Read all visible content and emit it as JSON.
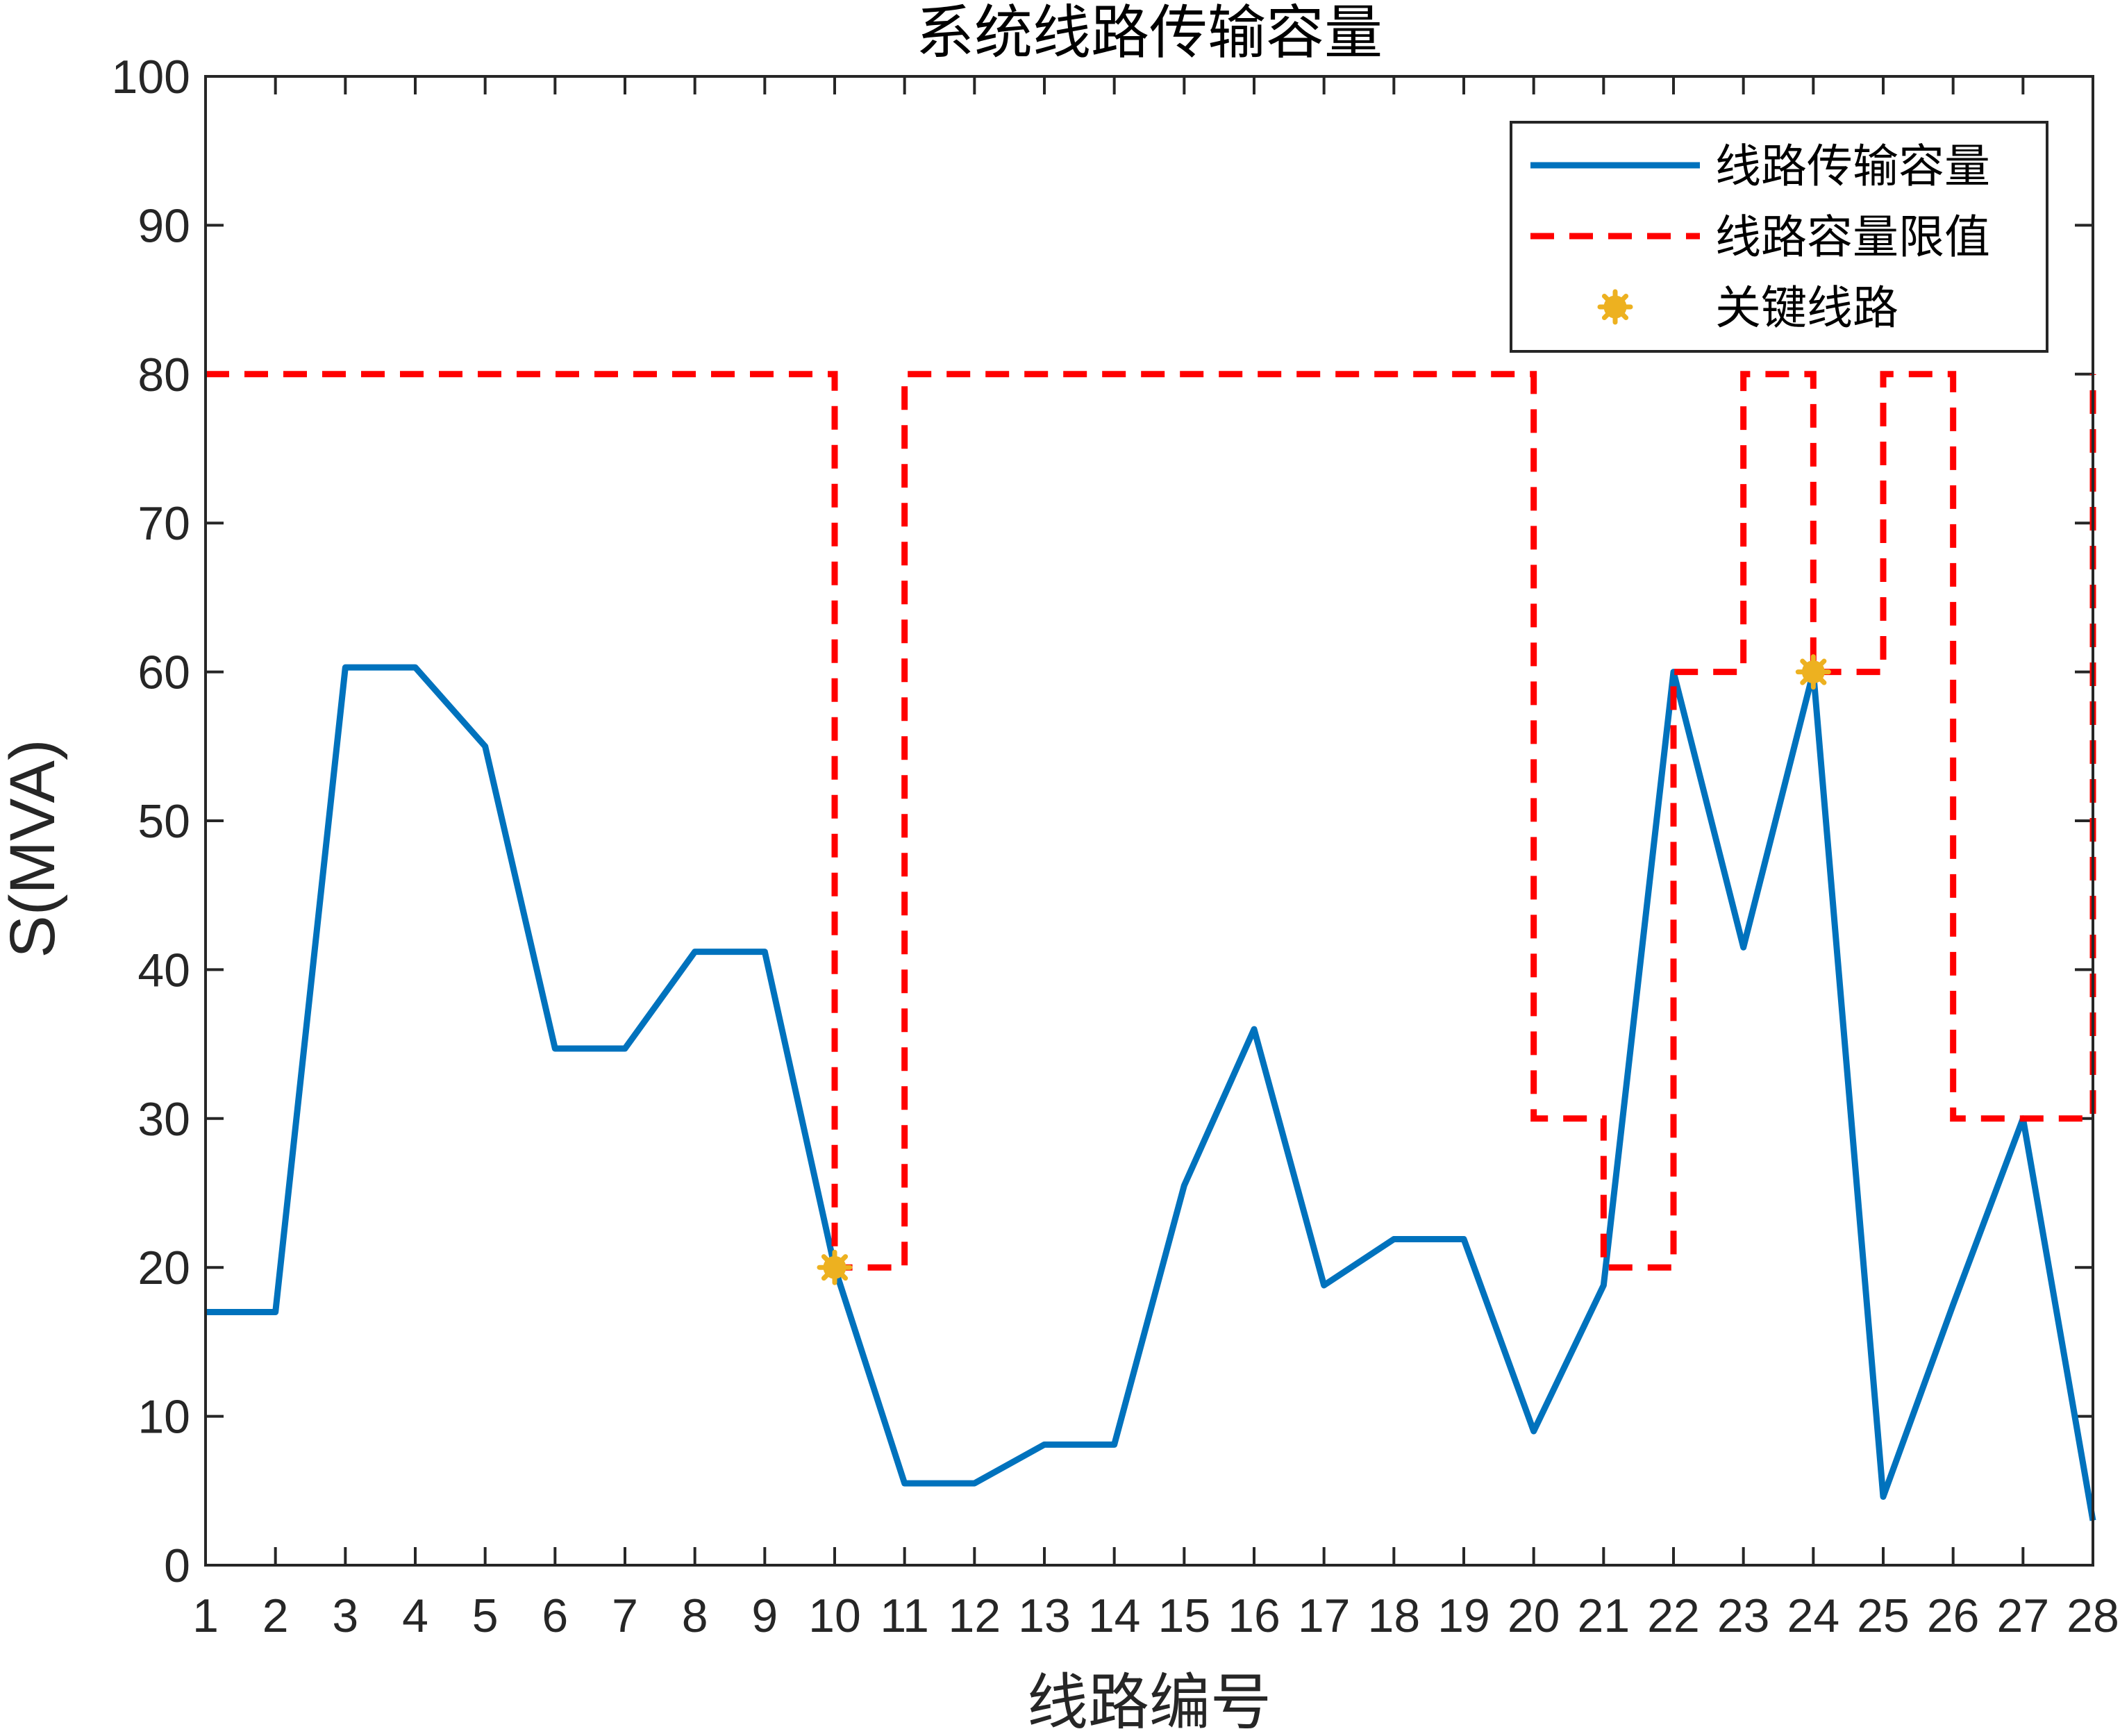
{
  "chart_data": {
    "type": "line",
    "title": "系统线路传输容量",
    "xlabel": "线路编号",
    "ylabel": "S(MVA)",
    "xlim": [
      1,
      28
    ],
    "ylim": [
      0,
      100
    ],
    "x_ticks": [
      1,
      2,
      3,
      4,
      5,
      6,
      7,
      8,
      9,
      10,
      11,
      12,
      13,
      14,
      15,
      16,
      17,
      18,
      19,
      20,
      21,
      22,
      23,
      24,
      25,
      26,
      27,
      28
    ],
    "y_ticks": [
      0,
      10,
      20,
      30,
      40,
      50,
      60,
      70,
      80,
      90,
      100
    ],
    "grid": false,
    "legend_position": "top-right",
    "x": [
      1,
      2,
      3,
      4,
      5,
      6,
      7,
      8,
      9,
      10,
      11,
      12,
      13,
      14,
      15,
      16,
      17,
      18,
      19,
      20,
      21,
      22,
      23,
      24,
      25,
      26,
      27,
      28
    ],
    "series": [
      {
        "name": "线路传输容量",
        "style": "solid",
        "color": "#0072BD",
        "values": [
          17,
          17,
          60.3,
          60.3,
          55,
          34.7,
          34.7,
          41.2,
          41.2,
          20,
          5.5,
          5.5,
          8.1,
          8.1,
          25.5,
          36,
          18.8,
          21.9,
          21.9,
          9,
          18.8,
          60,
          41.5,
          60,
          4.6,
          17.5,
          30,
          3
        ]
      },
      {
        "name": "线路容量限值",
        "style": "dashed-step",
        "color": "#FF0000",
        "values": [
          80,
          80,
          80,
          80,
          80,
          80,
          80,
          80,
          80,
          20,
          80,
          80,
          80,
          80,
          80,
          80,
          80,
          80,
          80,
          30,
          20,
          60,
          80,
          60,
          80,
          30,
          30,
          80
        ]
      },
      {
        "name": "关键线路",
        "style": "marker",
        "color": "#EDB120",
        "points": [
          [
            10,
            20
          ],
          [
            24,
            60
          ]
        ]
      }
    ]
  }
}
